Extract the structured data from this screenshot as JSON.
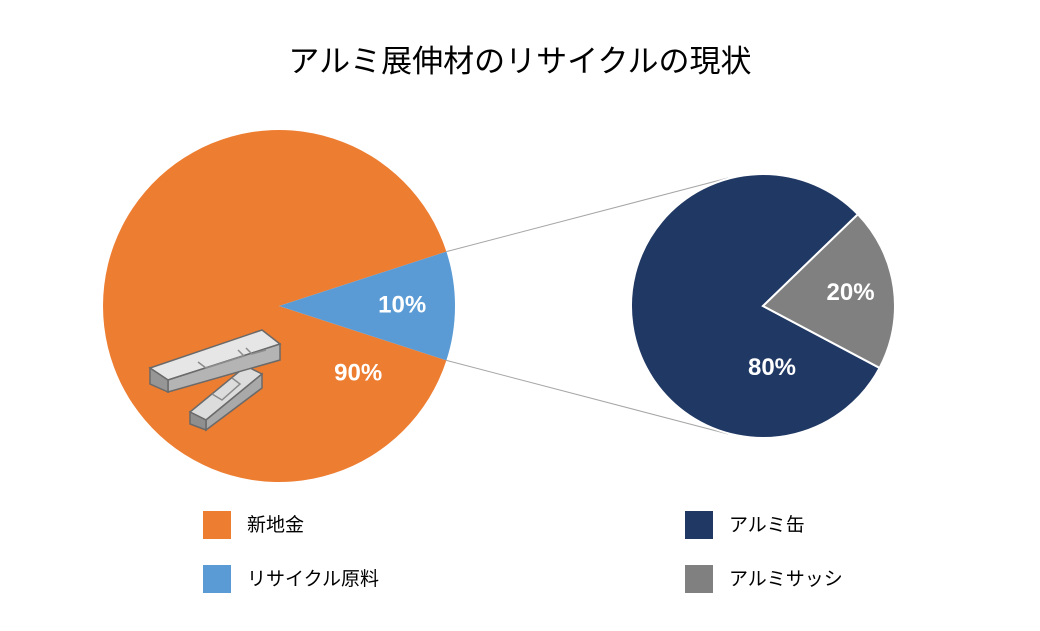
{
  "title": "アルミ展伸材のリサイクルの現状",
  "chart_data": [
    {
      "type": "pie",
      "title": "",
      "slices": [
        {
          "name": "新地金",
          "value": 90,
          "label": "90%",
          "color": "#ED7D31"
        },
        {
          "name": "リサイクル原料",
          "value": 10,
          "label": "10%",
          "color": "#5B9BD5"
        }
      ]
    },
    {
      "type": "pie",
      "title": "",
      "breakdown_of": "リサイクル原料",
      "slices": [
        {
          "name": "アルミ缶",
          "value": 80,
          "label": "80%",
          "color": "#203864"
        },
        {
          "name": "アルミサッシ",
          "value": 20,
          "label": "20%",
          "color": "#808080"
        }
      ]
    }
  ],
  "legend": {
    "left": [
      {
        "label": "新地金",
        "color": "#ED7D31"
      },
      {
        "label": "リサイクル原料",
        "color": "#5B9BD5"
      }
    ],
    "right": [
      {
        "label": "アルミ缶",
        "color": "#203864"
      },
      {
        "label": "アルミサッシ",
        "color": "#808080"
      }
    ]
  },
  "decorations": {
    "ingot_icon": "aluminum-ingot-icon"
  }
}
